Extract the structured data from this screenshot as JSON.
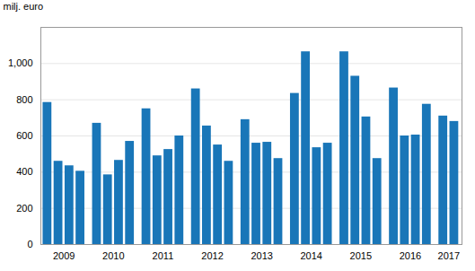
{
  "chart_data": {
    "type": "bar",
    "categories": [
      "2009",
      "2010",
      "2011",
      "2012",
      "2013",
      "2014",
      "2015",
      "2016",
      "2017"
    ],
    "values": [
      [
        785,
        460,
        435,
        405
      ],
      [
        670,
        385,
        465,
        570
      ],
      [
        750,
        490,
        525,
        600
      ],
      [
        860,
        655,
        550,
        460
      ],
      [
        690,
        560,
        565,
        475
      ],
      [
        835,
        1065,
        535,
        560
      ],
      [
        1065,
        930,
        705,
        475
      ],
      [
        865,
        600,
        605,
        775
      ],
      [
        710,
        680
      ]
    ],
    "color": "#1976b8",
    "ylabel": "milj. euro",
    "ylim": [
      0,
      1200
    ],
    "yticks": [
      0,
      200,
      400,
      600,
      800,
      1000
    ],
    "grid": true
  }
}
